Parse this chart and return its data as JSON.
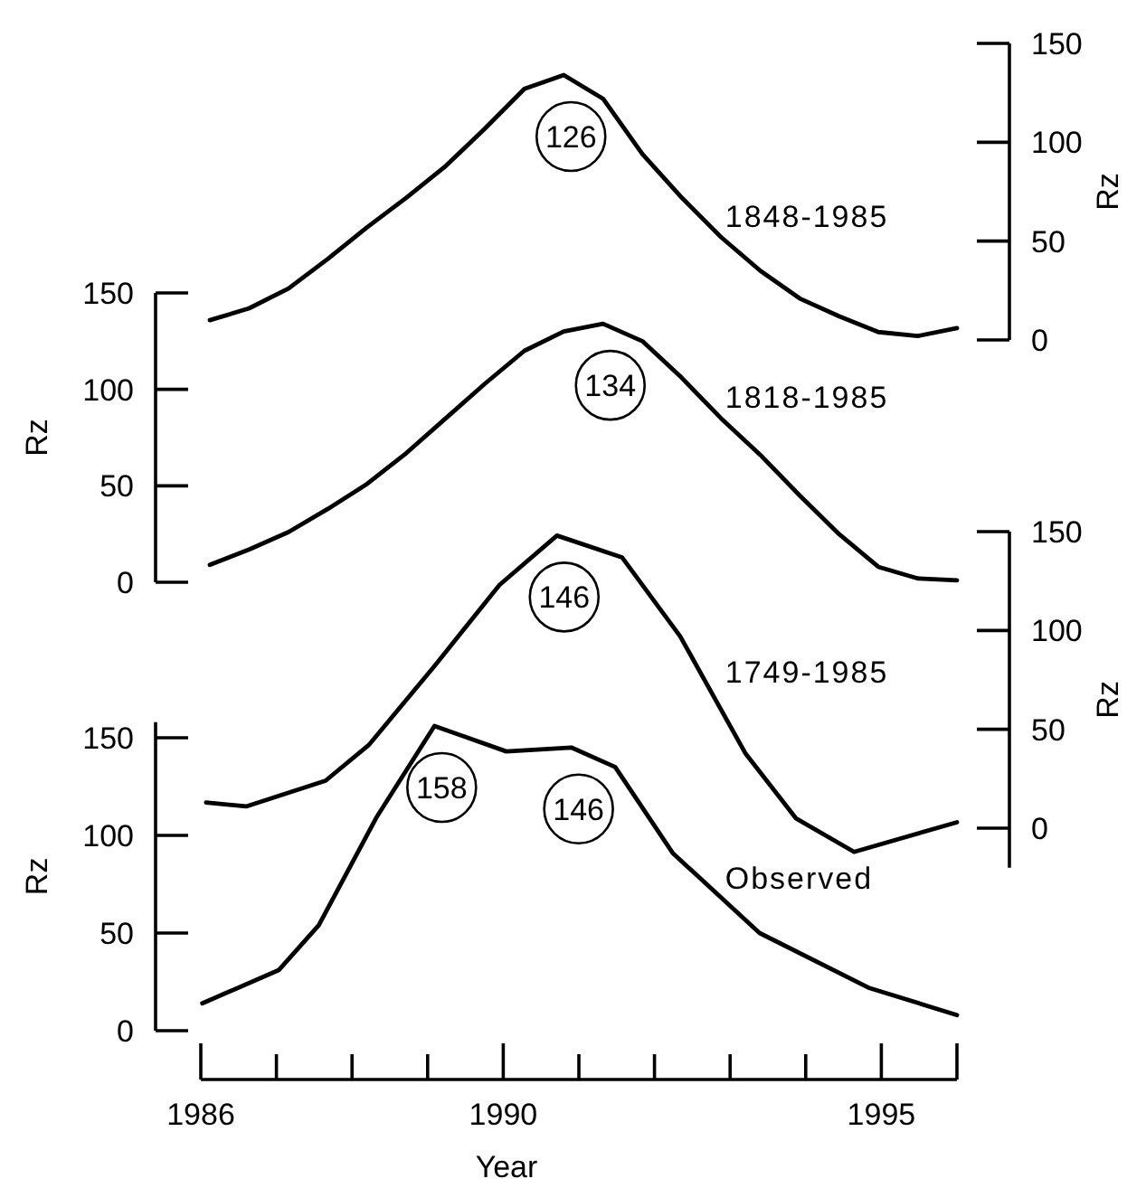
{
  "chart_data": [
    {
      "type": "line",
      "categories": [
        null,
        null,
        null,
        null,
        null,
        null,
        null,
        null,
        null,
        null,
        null,
        null,
        null,
        null,
        null,
        null,
        null,
        null,
        null,
        null
      ],
      "ylim": [
        0,
        150
      ],
      "yticks": [
        0,
        50,
        100,
        150
      ],
      "ylabel": "Rz",
      "series": [
        {
          "name": "1848-1985",
          "color": "#000000",
          "values": [
            10,
            16,
            26,
            41,
            57,
            72,
            88,
            107,
            127,
            134,
            122,
            94,
            72,
            52,
            35,
            21,
            12,
            4,
            2,
            6
          ]
        }
      ],
      "annotations": [
        "126"
      ]
    },
    {
      "type": "line",
      "categories": [
        null,
        null,
        null,
        null,
        null,
        null,
        null,
        null,
        null,
        null,
        null,
        null,
        null,
        null,
        null,
        null,
        null,
        null,
        null,
        null
      ],
      "ylim": [
        0,
        150
      ],
      "yticks": [
        0,
        50,
        100,
        150
      ],
      "ylabel": "Rz",
      "series": [
        {
          "name": "1818-1985",
          "color": "#000000",
          "values": [
            9,
            17,
            26,
            38,
            51,
            67,
            85,
            103,
            120,
            130,
            134,
            125,
            106,
            85,
            66,
            45,
            25,
            8,
            2,
            1
          ]
        }
      ],
      "annotations": [
        "134"
      ]
    },
    {
      "type": "line",
      "xlim": [
        1986,
        1996
      ],
      "xticks": [
        1986,
        1990,
        1995
      ],
      "xlabel": "Year",
      "ylim": [
        0,
        158
      ],
      "yticks": [
        0,
        50,
        100,
        150
      ],
      "ylabel": "Rz",
      "y2lim": [
        -20,
        150
      ],
      "y2ticks": [
        0,
        50,
        100,
        150
      ],
      "y2label": "Rz",
      "series": [
        {
          "name": "1749-1985",
          "color": "#000000",
          "axis": "y2",
          "x": [
            1986.07,
            1986.6,
            1987.65,
            1988.22,
            1989.09,
            1989.95,
            1990.71,
            1991.57,
            1992.34,
            1993.2,
            1993.87,
            1994.64,
            1996
          ],
          "values": [
            13,
            11,
            24,
            42,
            82,
            123,
            148,
            137,
            97,
            38,
            5,
            -12,
            3
          ]
        },
        {
          "name": "Observed",
          "color": "#000000",
          "x": [
            1986.02,
            1987.03,
            1987.56,
            1988.32,
            1989.09,
            1990.04,
            1990.9,
            1991.48,
            1992.24,
            1993.39,
            1994.83,
            1996
          ],
          "values": [
            14,
            31,
            54,
            109,
            156,
            143,
            145,
            135,
            91,
            50,
            22,
            8
          ]
        }
      ],
      "annotations": [
        "146",
        "158",
        "146"
      ]
    }
  ]
}
